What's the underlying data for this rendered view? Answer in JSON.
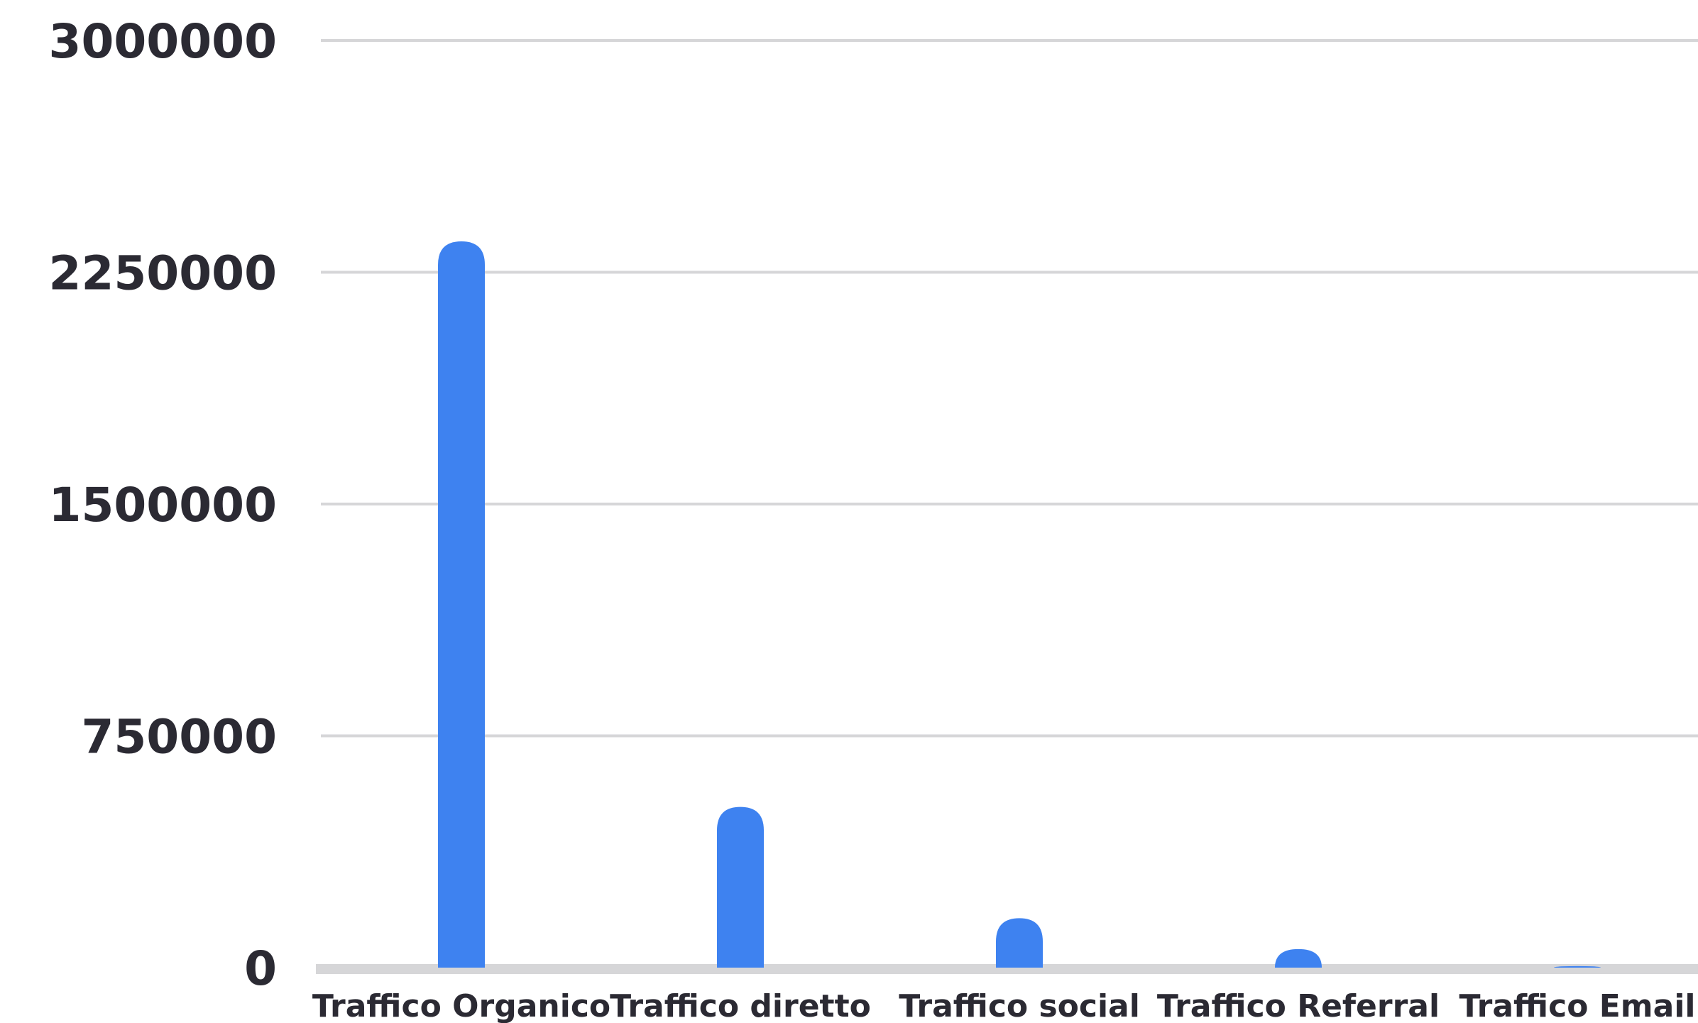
{
  "chart_data": {
    "type": "bar",
    "title": "",
    "xlabel": "",
    "ylabel": "",
    "categories": [
      "Traffico Organico",
      "Traffico diretto",
      "Traffico social",
      "Traffico Referral",
      "Traffico Email"
    ],
    "series": [
      {
        "values": [
          2350000,
          520000,
          160000,
          60000,
          5000
        ]
      }
    ],
    "ylim": [
      0,
      3000000
    ],
    "yticks": [
      "3000000",
      "2250000",
      "1500000",
      "750000",
      "0"
    ],
    "ytick_values": [
      3000000,
      2250000,
      1500000,
      750000,
      0
    ],
    "grid": true,
    "legend": "none",
    "colors": {
      "bar": "#3e82f0",
      "grid": "#d6d6d8",
      "baseline": "#d6d6d8",
      "text": "#2b2a33"
    }
  }
}
